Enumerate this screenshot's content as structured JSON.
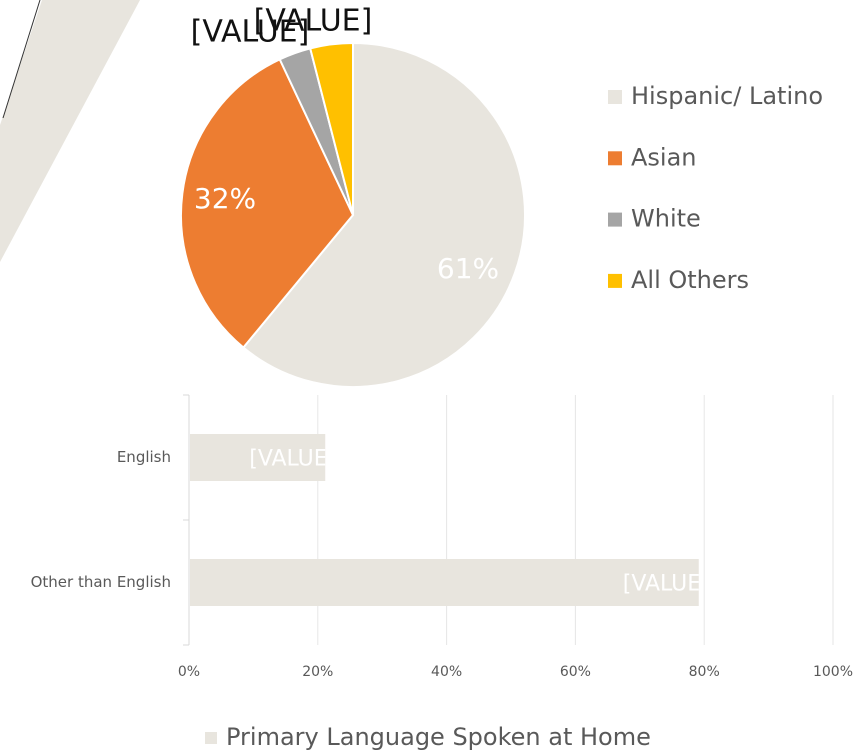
{
  "chart_data": [
    {
      "type": "pie",
      "categories": [
        "Hispanic/ Latino",
        "Asian",
        "White",
        "All Others"
      ],
      "values": [
        61,
        32,
        3,
        4
      ],
      "value_labels": [
        "61%",
        "32%",
        "[VALUE]",
        "[VALUE]"
      ],
      "colors": [
        "#e8e5de",
        "#ed7d31",
        "#a5a5a5",
        "#ffc000"
      ],
      "legend": "right"
    },
    {
      "type": "barh",
      "categories": [
        "English",
        "Other than English"
      ],
      "series": [
        {
          "name": "Primary Language Spoken at Home",
          "color": "#e8e5de",
          "values": [
            21,
            79
          ],
          "value_labels": [
            "[VALUE]",
            "[VALUE]"
          ]
        }
      ],
      "xlim": [
        0,
        100
      ],
      "xticks": [
        {
          "value": 0,
          "label": "0%"
        },
        {
          "value": 20,
          "label": "20%"
        },
        {
          "value": 40,
          "label": "40%"
        },
        {
          "value": 60,
          "label": "60%"
        },
        {
          "value": 80,
          "label": "80%"
        },
        {
          "value": 100,
          "label": "100%"
        }
      ],
      "grid": true,
      "legend": "bottom"
    }
  ]
}
